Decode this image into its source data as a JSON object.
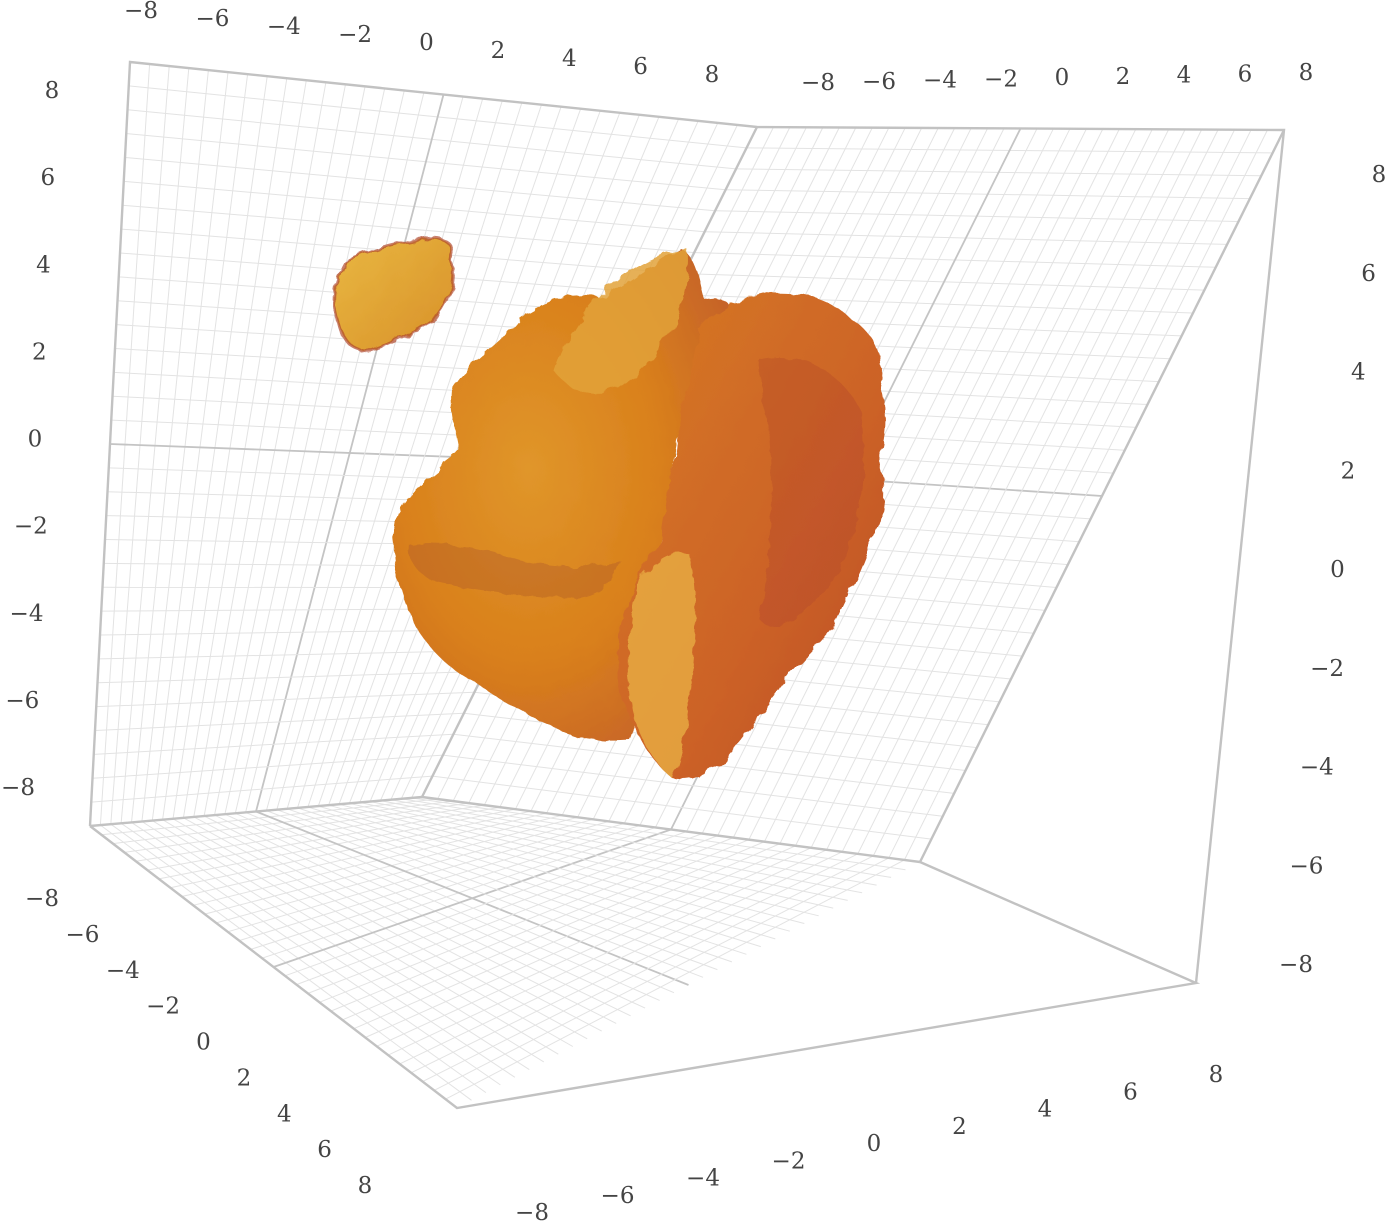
{
  "chart_data": {
    "type": "volume-3d",
    "title": "",
    "axes": {
      "x": {
        "label": "",
        "range": [
          -8,
          8
        ],
        "ticks": [
          -8,
          -6,
          -4,
          -2,
          0,
          2,
          4,
          6,
          8
        ]
      },
      "y": {
        "label": "",
        "range": [
          -8,
          8
        ],
        "ticks": [
          -8,
          -6,
          -4,
          -2,
          0,
          2,
          4,
          6,
          8
        ]
      },
      "z": {
        "label": "",
        "range": [
          -8,
          8
        ],
        "ticks": [
          -8,
          -6,
          -4,
          -2,
          0,
          2,
          4,
          6,
          8
        ]
      }
    },
    "grid": true,
    "surface_color": "#d9801c",
    "highlight_color": "#e6b43a",
    "shadow_color": "#b84a22",
    "objects": [
      {
        "name": "",
        "description": "main blob"
      },
      {
        "name": "",
        "description": "small fragment"
      }
    ]
  },
  "tick_labels": {
    "top_left": [
      "−8",
      "−6",
      "−4",
      "−2",
      "0",
      "2",
      "4",
      "6",
      "8"
    ],
    "top_right": [
      "−8",
      "−6",
      "−4",
      "−2",
      "0",
      "2",
      "4",
      "6",
      "8"
    ],
    "left": [
      "8",
      "6",
      "4",
      "2",
      "0",
      "−2",
      "−4",
      "−6",
      "−8"
    ],
    "right": [
      "8",
      "6",
      "4",
      "2",
      "0",
      "−2",
      "−4",
      "−6",
      "−8"
    ],
    "bottom_left": [
      "−8",
      "−6",
      "−4",
      "−2",
      "0",
      "2",
      "4",
      "6",
      "8"
    ],
    "bottom_right": [
      "−8",
      "−6",
      "−4",
      "−2",
      "0",
      "2",
      "4",
      "6",
      "8"
    ]
  }
}
